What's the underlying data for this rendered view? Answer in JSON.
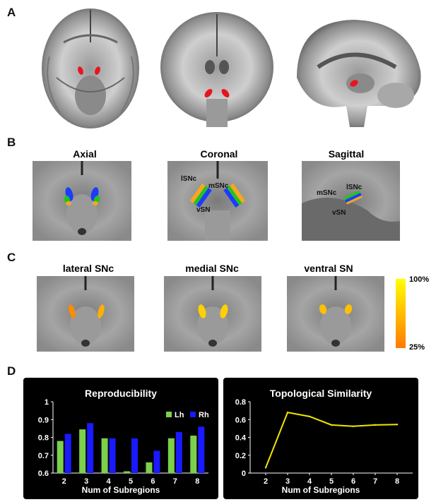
{
  "panels": {
    "A": "A",
    "B": "B",
    "C": "C",
    "D": "D"
  },
  "panel_b": {
    "titles": [
      "Axial",
      "Coronal",
      "Sagittal"
    ],
    "coronal_labels": {
      "lsnc": "lSNc",
      "msnc": "mSNc",
      "vsn": "vSN"
    },
    "sagittal_labels": {
      "msnc": "mSNc",
      "lsnc": "lSNc",
      "vsn": "vSN"
    }
  },
  "panel_c": {
    "titles": [
      "lateral SNc",
      "medial SNc",
      "ventral SN"
    ],
    "colorbar": {
      "max_label": "100%",
      "min_label": "25%",
      "color_top": "#ffff00",
      "color_bottom": "#ff7a00"
    }
  },
  "colors": {
    "lh": "#7bd14a",
    "rh": "#1a1aff",
    "line": "#f2e600",
    "roi_red": "#e8141e",
    "lsnc": "#f5a623",
    "msnc": "#22c41e",
    "vsn": "#1b3cff"
  },
  "chart_data": [
    {
      "type": "bar",
      "title": "Reproducibility",
      "xlabel": "Num of Subregions",
      "ylabel": "",
      "categories": [
        "2",
        "3",
        "4",
        "5",
        "6",
        "7",
        "8"
      ],
      "ylim": [
        0.6,
        1
      ],
      "yticks": [
        "0.6",
        "0.7",
        "0.8",
        "0.9",
        "1"
      ],
      "legend_position": "top-right",
      "series": [
        {
          "name": "Lh",
          "color": "#7bd14a",
          "values": [
            0.78,
            0.845,
            0.795,
            0.61,
            0.66,
            0.795,
            0.81
          ]
        },
        {
          "name": "Rh",
          "color": "#1a1aff",
          "values": [
            0.82,
            0.88,
            0.795,
            0.795,
            0.725,
            0.83,
            0.86
          ]
        }
      ]
    },
    {
      "type": "line",
      "title": "Topological Similarity",
      "xlabel": "Num of Subregions",
      "ylabel": "",
      "x": [
        2,
        3,
        4,
        5,
        6,
        7,
        8
      ],
      "xticks": [
        "2",
        "3",
        "4",
        "5",
        "6",
        "7",
        "8"
      ],
      "ylim": [
        0,
        0.8
      ],
      "yticks": [
        "0",
        "0.2",
        "0.4",
        "0.6",
        "0.8"
      ],
      "series": [
        {
          "color": "#f2e600",
          "values": [
            0.06,
            0.68,
            0.635,
            0.54,
            0.525,
            0.54,
            0.545
          ]
        }
      ]
    }
  ]
}
